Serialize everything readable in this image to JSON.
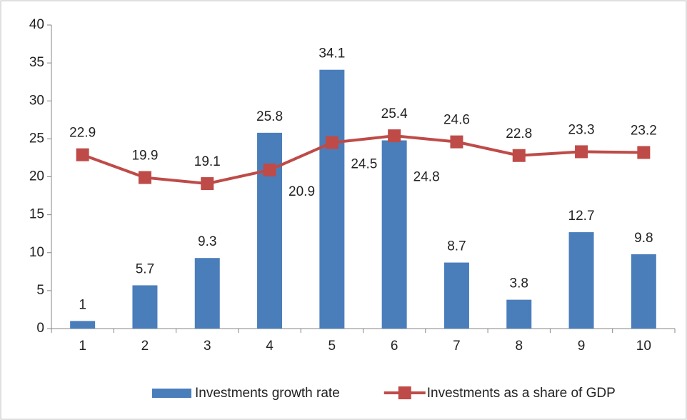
{
  "chart_data": {
    "type": "combo",
    "categories": [
      "1",
      "2",
      "3",
      "4",
      "5",
      "6",
      "7",
      "8",
      "9",
      "10"
    ],
    "series": [
      {
        "name": "Investments growth rate",
        "type": "bar",
        "color": "#4a7ebb",
        "values": [
          1,
          5.7,
          9.3,
          25.8,
          34.1,
          24.8,
          8.7,
          3.8,
          12.7,
          9.8
        ]
      },
      {
        "name": "Investments as a share of GDP",
        "type": "line",
        "color": "#be4b48",
        "values": [
          22.9,
          19.9,
          19.1,
          20.9,
          24.5,
          25.4,
          24.6,
          22.8,
          23.3,
          23.2
        ]
      }
    ],
    "ylim": [
      0,
      40
    ],
    "yticks": [
      0,
      5,
      10,
      15,
      20,
      25,
      30,
      35,
      40
    ],
    "grid": false,
    "legend": "bottom"
  }
}
